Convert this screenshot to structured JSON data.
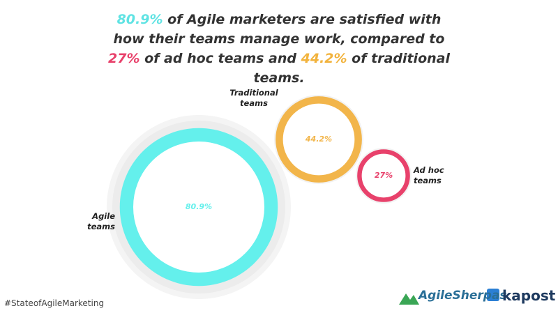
{
  "chart_data": {
    "type": "bubble",
    "title_segments": [
      {
        "text": "80.9%",
        "color": "#5fe3e3"
      },
      {
        "text": " of Agile marketers are satisfied with how their teams manage work, compared to "
      },
      {
        "text": "27%",
        "color": "#e8416b"
      },
      {
        "text": " of ad hoc teams and "
      },
      {
        "text": "44.2%",
        "color": "#f2b33d"
      },
      {
        "text": " of traditional teams."
      }
    ],
    "categories": [
      "Agile teams",
      "Traditional teams",
      "Ad hoc teams"
    ],
    "values": [
      80.9,
      44.2,
      27
    ],
    "value_labels": [
      "80.9%",
      "44.2%",
      "27%"
    ],
    "colors": [
      "#64f0ec",
      "#f2b54a",
      "#e8416b"
    ]
  },
  "footer": {
    "hashtag": "#StateofAgileMarketing",
    "logos": [
      "AgileSherpas",
      "kapost"
    ]
  }
}
